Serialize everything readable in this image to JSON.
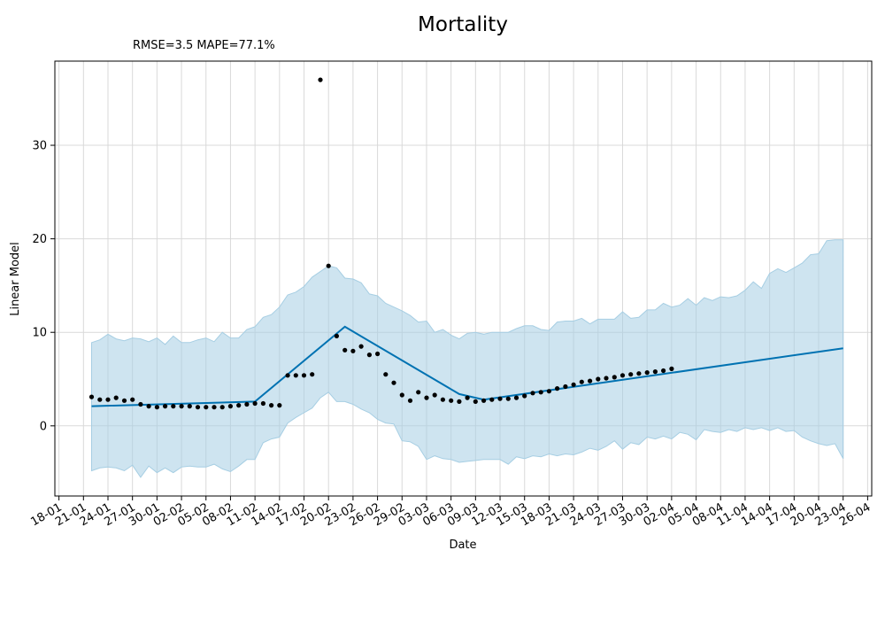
{
  "chart_data": {
    "type": "line",
    "title": "Mortality",
    "subtitle": "RMSE=3.5 MAPE=77.1%",
    "xlabel": "Date",
    "ylabel": "Linear Model",
    "x_range_days": [
      -4.5,
      95.5
    ],
    "ylim": [
      -7.5,
      39
    ],
    "grid": true,
    "colors": {
      "trend": "#0072b2",
      "band": "#a6cee3",
      "points": "#000000"
    },
    "x_ticks": [
      "18-01",
      "21-01",
      "24-01",
      "27-01",
      "30-01",
      "02-02",
      "05-02",
      "08-02",
      "11-02",
      "14-02",
      "17-02",
      "20-02",
      "23-02",
      "26-02",
      "29-02",
      "03-03",
      "06-03",
      "09-03",
      "12-03",
      "15-03",
      "18-03",
      "21-03",
      "24-03",
      "27-03",
      "30-03",
      "02-04",
      "05-04",
      "08-04",
      "11-04",
      "14-04",
      "17-04",
      "20-04",
      "23-04",
      "26-04"
    ],
    "y_ticks": [
      0,
      10,
      20,
      30
    ],
    "observed": {
      "x": [
        "22-01",
        "23-01",
        "24-01",
        "25-01",
        "26-01",
        "27-01",
        "28-01",
        "29-01",
        "30-01",
        "31-01",
        "01-02",
        "02-02",
        "03-02",
        "04-02",
        "05-02",
        "06-02",
        "07-02",
        "08-02",
        "09-02",
        "10-02",
        "11-02",
        "12-02",
        "13-02",
        "14-02",
        "15-02",
        "16-02",
        "17-02",
        "18-02",
        "19-02",
        "20-02",
        "21-02",
        "22-02",
        "23-02",
        "24-02",
        "25-02",
        "26-02",
        "27-02",
        "28-02",
        "29-02",
        "01-03",
        "02-03",
        "03-03",
        "04-03",
        "05-03",
        "06-03",
        "07-03",
        "08-03",
        "09-03",
        "10-03",
        "11-03",
        "12-03",
        "13-03",
        "14-03",
        "15-03",
        "16-03",
        "17-03",
        "18-03",
        "19-03",
        "20-03",
        "21-03",
        "22-03",
        "23-03",
        "24-03",
        "25-03",
        "26-03",
        "27-03",
        "28-03",
        "29-03",
        "30-03",
        "31-03",
        "01-04",
        "02-04"
      ],
      "y": [
        3.1,
        2.8,
        2.8,
        3.0,
        2.7,
        2.8,
        2.3,
        2.1,
        2.0,
        2.1,
        2.1,
        2.1,
        2.1,
        2.0,
        2.0,
        2.0,
        2.0,
        2.1,
        2.2,
        2.3,
        2.4,
        2.4,
        2.2,
        2.2,
        5.4,
        5.4,
        5.4,
        5.5,
        37.0,
        17.1,
        9.6,
        8.1,
        8.0,
        8.5,
        7.6,
        7.7,
        5.5,
        4.6,
        3.3,
        2.7,
        3.6,
        3.0,
        3.3,
        2.8,
        2.7,
        2.6,
        3.0,
        2.6,
        2.7,
        2.8,
        2.9,
        2.9,
        3.0,
        3.2,
        3.5,
        3.6,
        3.7,
        4.0,
        4.2,
        4.4,
        4.7,
        4.8,
        5.0,
        5.1,
        5.2,
        5.4,
        5.5,
        5.6,
        5.7,
        5.8,
        5.9,
        6.1
      ]
    },
    "trend": {
      "x": [
        "22-01",
        "11-02",
        "22-02",
        "07-03",
        "10-03",
        "23-04"
      ],
      "y": [
        2.1,
        2.6,
        10.6,
        3.4,
        2.8,
        8.3
      ]
    },
    "band": {
      "x": [
        "22-01",
        "23-01",
        "24-01",
        "25-01",
        "26-01",
        "27-01",
        "28-01",
        "29-01",
        "30-01",
        "31-01",
        "01-02",
        "02-02",
        "03-02",
        "04-02",
        "05-02",
        "06-02",
        "07-02",
        "08-02",
        "09-02",
        "10-02",
        "11-02",
        "12-02",
        "13-02",
        "14-02",
        "15-02",
        "16-02",
        "17-02",
        "18-02",
        "19-02",
        "20-02",
        "21-02",
        "22-02",
        "23-02",
        "24-02",
        "25-02",
        "26-02",
        "27-02",
        "28-02",
        "29-02",
        "01-03",
        "02-03",
        "03-03",
        "04-03",
        "05-03",
        "06-03",
        "07-03",
        "08-03",
        "09-03",
        "10-03",
        "11-03",
        "12-03",
        "13-03",
        "14-03",
        "15-03",
        "16-03",
        "17-03",
        "18-03",
        "19-03",
        "20-03",
        "21-03",
        "22-03",
        "23-03",
        "24-03",
        "25-03",
        "26-03",
        "27-03",
        "28-03",
        "29-03",
        "30-03",
        "31-03",
        "01-04",
        "02-04",
        "03-04",
        "04-04",
        "05-04",
        "06-04",
        "07-04",
        "08-04",
        "09-04",
        "10-04",
        "11-04",
        "12-04",
        "13-04",
        "14-04",
        "15-04",
        "16-04",
        "17-04",
        "18-04",
        "19-04",
        "20-04",
        "21-04",
        "22-04",
        "23-04"
      ],
      "upper": [
        8.9,
        9.2,
        9.8,
        9.3,
        9.1,
        9.4,
        9.3,
        9.0,
        9.4,
        8.7,
        9.6,
        8.9,
        8.9,
        9.2,
        9.4,
        9.0,
        10.0,
        9.4,
        9.4,
        10.3,
        10.6,
        11.6,
        11.9,
        12.7,
        14.0,
        14.3,
        14.9,
        15.9,
        16.5,
        17.1,
        16.9,
        15.8,
        15.7,
        15.3,
        14.1,
        13.9,
        13.1,
        12.7,
        12.3,
        11.8,
        11.1,
        11.2,
        10.0,
        10.3,
        9.7,
        9.3,
        9.9,
        10.0,
        9.8,
        10.0,
        10.0,
        10.0,
        10.4,
        10.7,
        10.7,
        10.3,
        10.2,
        11.1,
        11.2,
        11.2,
        11.5,
        10.9,
        11.4,
        11.4,
        11.4,
        12.2,
        11.5,
        11.6,
        12.4,
        12.4,
        13.1,
        12.7,
        12.9,
        13.6,
        12.9,
        13.7,
        13.4,
        13.8,
        13.7,
        13.9,
        14.5,
        15.4,
        14.7,
        16.3,
        16.8,
        16.4,
        16.9,
        17.4,
        18.3,
        18.4,
        19.8,
        19.9,
        19.9
      ],
      "lower": [
        -4.8,
        -4.5,
        -4.4,
        -4.5,
        -4.8,
        -4.2,
        -5.5,
        -4.3,
        -5.0,
        -4.5,
        -5.0,
        -4.4,
        -4.3,
        -4.4,
        -4.4,
        -4.1,
        -4.6,
        -4.9,
        -4.3,
        -3.6,
        -3.6,
        -1.8,
        -1.4,
        -1.2,
        0.3,
        0.9,
        1.4,
        1.9,
        3.0,
        3.6,
        2.6,
        2.6,
        2.3,
        1.8,
        1.4,
        0.7,
        0.3,
        0.2,
        -1.6,
        -1.7,
        -2.2,
        -3.6,
        -3.2,
        -3.5,
        -3.6,
        -3.9,
        -3.8,
        -3.7,
        -3.6,
        -3.6,
        -3.6,
        -4.1,
        -3.3,
        -3.5,
        -3.2,
        -3.3,
        -3.0,
        -3.2,
        -3.0,
        -3.1,
        -2.8,
        -2.4,
        -2.6,
        -2.2,
        -1.6,
        -2.5,
        -1.8,
        -2.0,
        -1.2,
        -1.4,
        -1.1,
        -1.4,
        -0.7,
        -0.9,
        -1.5,
        -0.4,
        -0.6,
        -0.7,
        -0.4,
        -0.6,
        -0.2,
        -0.4,
        -0.2,
        -0.5,
        -0.2,
        -0.6,
        -0.5,
        -1.2,
        -1.6,
        -1.9,
        -2.1,
        -1.9,
        -3.5
      ]
    }
  }
}
